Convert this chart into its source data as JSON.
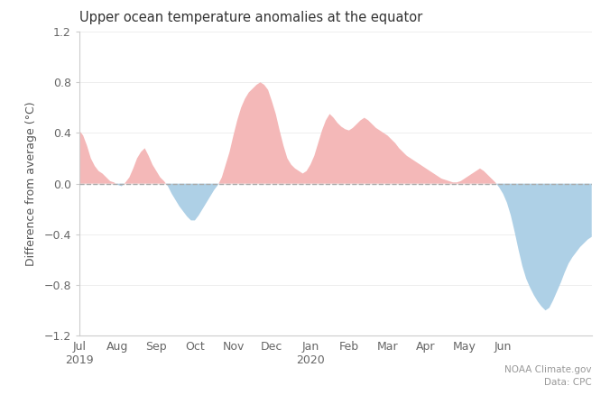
{
  "title": "Upper ocean temperature anomalies at the equator",
  "ylabel": "Difference from average (°C)",
  "ylim": [
    -1.2,
    1.2
  ],
  "yticks": [
    -1.2,
    -0.8,
    -0.4,
    0.0,
    0.4,
    0.8,
    1.2
  ],
  "background_color": "#ffffff",
  "warm_color": "#f4b8b8",
  "cool_color": "#aed0e6",
  "dashed_line_color": "#aaaaaa",
  "annotation": "NOAA Climate.gov\nData: CPC",
  "y_values": [
    0.42,
    0.38,
    0.3,
    0.2,
    0.14,
    0.1,
    0.08,
    0.05,
    0.02,
    0.01,
    -0.01,
    -0.02,
    0.01,
    0.05,
    0.12,
    0.2,
    0.25,
    0.28,
    0.22,
    0.15,
    0.1,
    0.05,
    0.02,
    -0.02,
    -0.08,
    -0.13,
    -0.18,
    -0.22,
    -0.26,
    -0.29,
    -0.29,
    -0.25,
    -0.2,
    -0.15,
    -0.1,
    -0.05,
    -0.01,
    0.05,
    0.15,
    0.25,
    0.38,
    0.5,
    0.6,
    0.67,
    0.72,
    0.75,
    0.78,
    0.8,
    0.78,
    0.74,
    0.65,
    0.55,
    0.42,
    0.3,
    0.2,
    0.15,
    0.12,
    0.1,
    0.08,
    0.1,
    0.15,
    0.22,
    0.32,
    0.42,
    0.5,
    0.55,
    0.52,
    0.48,
    0.45,
    0.43,
    0.42,
    0.44,
    0.47,
    0.5,
    0.52,
    0.5,
    0.47,
    0.44,
    0.42,
    0.4,
    0.38,
    0.35,
    0.32,
    0.28,
    0.25,
    0.22,
    0.2,
    0.18,
    0.16,
    0.14,
    0.12,
    0.1,
    0.08,
    0.06,
    0.04,
    0.03,
    0.02,
    0.01,
    0.01,
    0.02,
    0.04,
    0.06,
    0.08,
    0.1,
    0.12,
    0.1,
    0.07,
    0.04,
    0.01,
    -0.03,
    -0.08,
    -0.15,
    -0.25,
    -0.38,
    -0.52,
    -0.65,
    -0.75,
    -0.82,
    -0.88,
    -0.93,
    -0.97,
    -1.0,
    -0.98,
    -0.92,
    -0.85,
    -0.78,
    -0.7,
    -0.63,
    -0.58,
    -0.54,
    -0.5,
    -0.47,
    -0.44,
    -0.42
  ],
  "tick_labels": [
    "Jul\n2019",
    "Aug",
    "Sep",
    "Oct",
    "Nov",
    "Dec",
    "Jan\n2020",
    "Feb",
    "Mar",
    "Apr",
    "May",
    "Jun"
  ],
  "tick_positions": [
    0,
    10,
    20,
    30,
    40,
    50,
    60,
    70,
    80,
    90,
    100,
    110
  ]
}
